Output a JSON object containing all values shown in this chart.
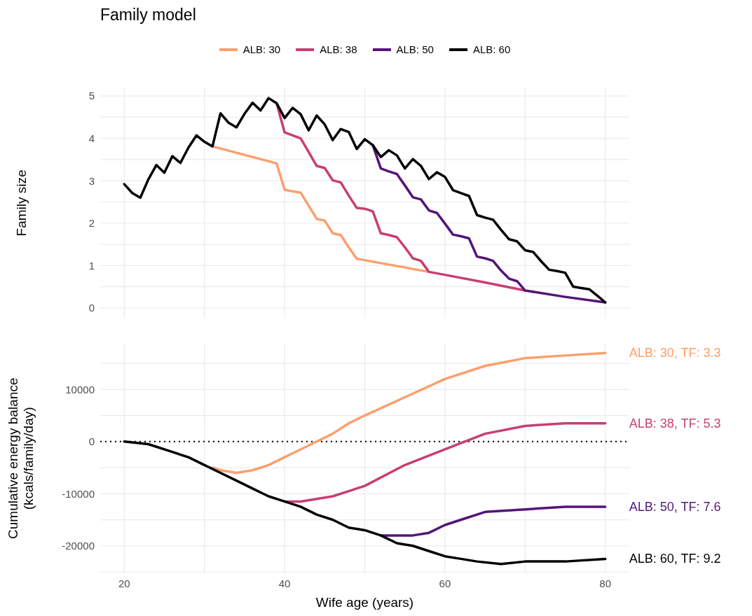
{
  "chart_data": [
    {
      "type": "line",
      "title": "Family model",
      "ylabel": "Family size",
      "legend": "top",
      "grid": true,
      "tick_labels": "y",
      "xlim": [
        17,
        83
      ],
      "xticks": [
        20,
        {
          "value": 30,
          "label": null
        },
        40,
        {
          "value": 50,
          "label": null
        },
        60,
        {
          "value": 70,
          "label": null
        },
        80
      ],
      "ylim": [
        -0.25,
        5.2
      ],
      "yticks": [
        0,
        {
          "value": 0.5,
          "label": null
        },
        1,
        {
          "value": 1.5,
          "label": null
        },
        2,
        {
          "value": 2.5,
          "label": null
        },
        3,
        {
          "value": 3.5,
          "label": null
        },
        4,
        {
          "value": 4.5,
          "label": null
        },
        5
      ],
      "series": [
        {
          "name": "ALB: 30",
          "color": "#fd9f6c",
          "x": [
            31,
            39,
            40,
            41,
            42,
            43,
            44,
            45,
            46,
            47,
            48,
            49,
            58
          ],
          "values": [
            3.81,
            3.41,
            2.79,
            2.75,
            2.72,
            2.41,
            2.1,
            2.06,
            1.76,
            1.72,
            1.43,
            1.16,
            0.85
          ]
        },
        {
          "name": "ALB: 38",
          "color": "#c83e73",
          "x": [
            39,
            40,
            41,
            42,
            43,
            44,
            45,
            46,
            47,
            48,
            49,
            50,
            51,
            52,
            53,
            54,
            55,
            56,
            57,
            58,
            60,
            65,
            70
          ],
          "values": [
            4.83,
            4.14,
            4.07,
            4.0,
            3.68,
            3.35,
            3.3,
            3.01,
            2.96,
            2.65,
            2.36,
            2.34,
            2.28,
            1.76,
            1.72,
            1.67,
            1.43,
            1.17,
            1.11,
            0.85,
            0.78,
            0.6,
            0.41
          ]
        },
        {
          "name": "ALB: 50",
          "color": "#541479",
          "x": [
            51,
            52,
            53,
            54,
            55,
            56,
            57,
            58,
            59,
            60,
            61,
            62,
            63,
            64,
            65,
            66,
            67,
            68,
            69,
            70,
            75,
            80
          ],
          "values": [
            3.84,
            3.29,
            3.22,
            3.16,
            2.89,
            2.61,
            2.56,
            2.3,
            2.24,
            1.99,
            1.73,
            1.69,
            1.64,
            1.21,
            1.17,
            1.11,
            0.88,
            0.69,
            0.63,
            0.41,
            0.26,
            0.13
          ]
        },
        {
          "name": "ALB: 60",
          "color": "#000000",
          "x": [
            20,
            21,
            22,
            23,
            24,
            25,
            26,
            27,
            28,
            29,
            30,
            31,
            32,
            33,
            34,
            35,
            36,
            37,
            38,
            39,
            40,
            41,
            42,
            43,
            44,
            45,
            46,
            47,
            48,
            49,
            50,
            51,
            52,
            53,
            54,
            55,
            56,
            57,
            58,
            59,
            60,
            61,
            62,
            63,
            64,
            65,
            66,
            67,
            68,
            69,
            70,
            71,
            72,
            73,
            74,
            75,
            76,
            77,
            78,
            79,
            80
          ],
          "values": [
            2.92,
            2.71,
            2.6,
            3.03,
            3.37,
            3.19,
            3.58,
            3.42,
            3.78,
            4.07,
            3.92,
            3.81,
            4.59,
            4.37,
            4.26,
            4.58,
            4.84,
            4.66,
            4.95,
            4.83,
            4.48,
            4.72,
            4.57,
            4.19,
            4.54,
            4.33,
            3.96,
            4.22,
            4.15,
            3.75,
            3.98,
            3.84,
            3.56,
            3.72,
            3.6,
            3.29,
            3.51,
            3.35,
            3.04,
            3.2,
            3.09,
            2.78,
            2.71,
            2.64,
            2.19,
            2.13,
            2.08,
            1.84,
            1.62,
            1.57,
            1.36,
            1.32,
            1.1,
            0.9,
            0.87,
            0.83,
            0.5,
            0.47,
            0.44,
            0.29,
            0.13
          ]
        }
      ]
    },
    {
      "type": "line",
      "xlabel": "Wife age (years)",
      "ylabel": "Cumulative energy balance\n(kcals/family/day)",
      "grid": true,
      "xlim": [
        17,
        83
      ],
      "xticks": [
        20,
        {
          "value": 30,
          "label": null
        },
        40,
        {
          "value": 50,
          "label": null
        },
        60,
        {
          "value": 70,
          "label": null
        },
        80
      ],
      "ylim": [
        -25400,
        18900
      ],
      "yticks": [
        {
          "value": -25000,
          "label": null
        },
        -20000,
        {
          "value": -15000,
          "label": null
        },
        -10000,
        {
          "value": -5000,
          "label": null
        },
        0,
        {
          "value": 5000,
          "label": null
        },
        10000,
        {
          "value": 15000,
          "label": null
        }
      ],
      "ref_lines": [
        {
          "axis": "y",
          "value": 0,
          "color": "#000000",
          "line_style": "dotted"
        }
      ],
      "series": [
        {
          "name": "ALB: 30, TF: 3.3",
          "color": "#fd9f6c",
          "x": [
            31,
            32,
            34,
            36,
            38,
            40,
            42,
            44,
            46,
            48,
            50,
            55,
            60,
            65,
            70,
            75,
            80
          ],
          "values": [
            -5000,
            -5500,
            -6000,
            -5500,
            -4500,
            -3000,
            -1500,
            0,
            1500,
            3500,
            5000,
            8500,
            12000,
            14500,
            16000,
            16500,
            17000
          ]
        },
        {
          "name": "ALB: 38, TF: 5.3",
          "color": "#c83e73",
          "x": [
            40,
            42,
            44,
            46,
            48,
            50,
            55,
            60,
            65,
            70,
            75,
            80
          ],
          "values": [
            -11500,
            -11500,
            -11000,
            -10500,
            -9500,
            -8500,
            -4500,
            -1500,
            1500,
            3000,
            3500,
            3500
          ]
        },
        {
          "name": "ALB: 50, TF: 7.6",
          "color": "#541479",
          "x": [
            52,
            54,
            56,
            58,
            60,
            62,
            65,
            70,
            75,
            80
          ],
          "values": [
            -18000,
            -18000,
            -18000,
            -17500,
            -16000,
            -15000,
            -13500,
            -13000,
            -12500,
            -12500
          ]
        },
        {
          "name": "ALB: 60, TF: 9.2",
          "color": "#000000",
          "x": [
            20,
            23,
            26,
            28,
            30,
            32,
            34,
            36,
            38,
            40,
            42,
            44,
            46,
            48,
            50,
            52,
            54,
            56,
            58,
            60,
            62,
            64,
            67,
            70,
            75,
            80
          ],
          "values": [
            0,
            -500,
            -2000,
            -3000,
            -4500,
            -6000,
            -7500,
            -9000,
            -10500,
            -11500,
            -12500,
            -14000,
            -15000,
            -16500,
            -17000,
            -18000,
            -19500,
            -20000,
            -21000,
            -22000,
            -22500,
            -23000,
            -23500,
            -23000,
            -23000,
            -22500
          ]
        }
      ]
    }
  ]
}
